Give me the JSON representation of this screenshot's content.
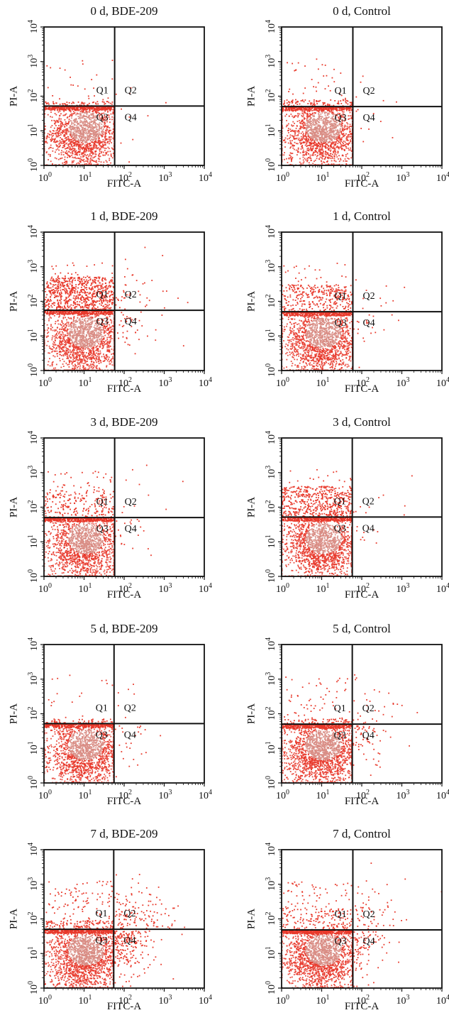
{
  "chart_data": [
    {
      "type": "scatter",
      "title": "0 d, BDE-209",
      "xlabel": "FITC-A",
      "ylabel": "PI-A",
      "xscale": "log",
      "yscale": "log",
      "xlim": [
        1,
        10000
      ],
      "ylim": [
        1,
        10000
      ],
      "x_ticks": [
        "10",
        "10",
        "10",
        "10",
        "10"
      ],
      "x_tick_exponents": [
        "0",
        "1",
        "2",
        "3",
        "4"
      ],
      "y_ticks": [
        "10",
        "10",
        "10",
        "10",
        "10"
      ],
      "y_tick_exponents": [
        "0",
        "1",
        "2",
        "3",
        "4"
      ],
      "gate_x": 58,
      "gate_y": 52,
      "quadrants": [
        "Q1",
        "Q2",
        "Q3",
        "Q4"
      ],
      "point_color": "#e8392b",
      "grid": false,
      "populations": {
        "q3_dense": 1700,
        "q1_band": 60,
        "q1_sparse": 25,
        "q2": 4,
        "q4": 6,
        "q1_band_top": 70
      }
    },
    {
      "type": "scatter",
      "title": "0 d, Control",
      "xlabel": "FITC-A",
      "ylabel": "PI-A",
      "xscale": "log",
      "yscale": "log",
      "xlim": [
        1,
        10000
      ],
      "ylim": [
        1,
        10000
      ],
      "x_ticks": [
        "10",
        "10",
        "10",
        "10",
        "10"
      ],
      "x_tick_exponents": [
        "0",
        "1",
        "2",
        "3",
        "4"
      ],
      "y_ticks": [
        "10",
        "10",
        "10",
        "10",
        "10"
      ],
      "y_tick_exponents": [
        "0",
        "1",
        "2",
        "3",
        "4"
      ],
      "gate_x": 60,
      "gate_y": 50,
      "quadrants": [
        "Q1",
        "Q2",
        "Q3",
        "Q4"
      ],
      "point_color": "#e8392b",
      "grid": false,
      "populations": {
        "q3_dense": 1700,
        "q1_band": 90,
        "q1_sparse": 40,
        "q2": 5,
        "q4": 8,
        "q1_band_top": 80
      }
    },
    {
      "type": "scatter",
      "title": "1 d, BDE-209",
      "xlabel": "FITC-A",
      "ylabel": "PI-A",
      "xscale": "log",
      "yscale": "log",
      "xlim": [
        1,
        10000
      ],
      "ylim": [
        1,
        10000
      ],
      "x_ticks": [
        "10",
        "10",
        "10",
        "10",
        "10"
      ],
      "x_tick_exponents": [
        "0",
        "1",
        "2",
        "3",
        "4"
      ],
      "y_ticks": [
        "10",
        "10",
        "10",
        "10",
        "10"
      ],
      "y_tick_exponents": [
        "0",
        "1",
        "2",
        "3",
        "4"
      ],
      "gate_x": 58,
      "gate_y": 55,
      "quadrants": [
        "Q1",
        "Q2",
        "Q3",
        "Q4"
      ],
      "point_color": "#e8392b",
      "grid": false,
      "populations": {
        "q3_dense": 1700,
        "q1_band": 700,
        "q1_sparse": 50,
        "q2": 40,
        "q4": 40,
        "q1_band_top": 500
      }
    },
    {
      "type": "scatter",
      "title": "1 d, Control",
      "xlabel": "FITC-A",
      "ylabel": "PI-A",
      "xscale": "log",
      "yscale": "log",
      "xlim": [
        1,
        10000
      ],
      "ylim": [
        1,
        10000
      ],
      "x_ticks": [
        "10",
        "10",
        "10",
        "10",
        "10"
      ],
      "x_tick_exponents": [
        "0",
        "1",
        "2",
        "3",
        "4"
      ],
      "y_ticks": [
        "10",
        "10",
        "10",
        "10",
        "10"
      ],
      "y_tick_exponents": [
        "0",
        "1",
        "2",
        "3",
        "4"
      ],
      "gate_x": 60,
      "gate_y": 50,
      "quadrants": [
        "Q1",
        "Q2",
        "Q3",
        "Q4"
      ],
      "point_color": "#e8392b",
      "grid": false,
      "populations": {
        "q3_dense": 1700,
        "q1_band": 300,
        "q1_sparse": 40,
        "q2": 10,
        "q4": 20,
        "q1_band_top": 300
      }
    },
    {
      "type": "scatter",
      "title": "3 d, BDE-209",
      "xlabel": "FITC-A",
      "ylabel": "PI-A",
      "xscale": "log",
      "yscale": "log",
      "xlim": [
        1,
        10000
      ],
      "ylim": [
        1,
        10000
      ],
      "x_ticks": [
        "10",
        "10",
        "10",
        "10",
        "10"
      ],
      "x_tick_exponents": [
        "0",
        "1",
        "2",
        "3",
        "4"
      ],
      "y_ticks": [
        "10",
        "10",
        "10",
        "10",
        "10"
      ],
      "y_tick_exponents": [
        "0",
        "1",
        "2",
        "3",
        "4"
      ],
      "gate_x": 58,
      "gate_y": 50,
      "quadrants": [
        "Q1",
        "Q2",
        "Q3",
        "Q4"
      ],
      "point_color": "#e8392b",
      "grid": false,
      "populations": {
        "q3_dense": 1700,
        "q1_band": 180,
        "q1_sparse": 60,
        "q2": 10,
        "q4": 20,
        "q1_band_top": 300
      }
    },
    {
      "type": "scatter",
      "title": "3 d, Control",
      "xlabel": "FITC-A",
      "ylabel": "PI-A",
      "xscale": "log",
      "yscale": "log",
      "xlim": [
        1,
        10000
      ],
      "ylim": [
        1,
        10000
      ],
      "x_ticks": [
        "10",
        "10",
        "10",
        "10",
        "10"
      ],
      "x_tick_exponents": [
        "0",
        "1",
        "2",
        "3",
        "4"
      ],
      "y_ticks": [
        "10",
        "10",
        "10",
        "10",
        "10"
      ],
      "y_tick_exponents": [
        "0",
        "1",
        "2",
        "3",
        "4"
      ],
      "gate_x": 58,
      "gate_y": 52,
      "quadrants": [
        "Q1",
        "Q2",
        "Q3",
        "Q4"
      ],
      "point_color": "#e8392b",
      "grid": false,
      "populations": {
        "q3_dense": 1700,
        "q1_band": 500,
        "q1_sparse": 40,
        "q2": 10,
        "q4": 10,
        "q1_band_top": 400
      }
    },
    {
      "type": "scatter",
      "title": "5 d, BDE-209",
      "xlabel": "FITC-A",
      "ylabel": "PI-A",
      "xscale": "log",
      "yscale": "log",
      "xlim": [
        1,
        10000
      ],
      "ylim": [
        1,
        10000
      ],
      "x_ticks": [
        "10",
        "10",
        "10",
        "10",
        "10"
      ],
      "x_tick_exponents": [
        "0",
        "1",
        "2",
        "3",
        "4"
      ],
      "y_ticks": [
        "10",
        "10",
        "10",
        "10",
        "10"
      ],
      "y_tick_exponents": [
        "0",
        "1",
        "2",
        "3",
        "4"
      ],
      "gate_x": 56,
      "gate_y": 52,
      "quadrants": [
        "Q1",
        "Q2",
        "Q3",
        "Q4"
      ],
      "point_color": "#e8392b",
      "grid": false,
      "populations": {
        "q3_dense": 1700,
        "q1_band": 50,
        "q1_sparse": 20,
        "q2": 6,
        "q4": 25,
        "q1_band_top": 70
      }
    },
    {
      "type": "scatter",
      "title": "5 d, Control",
      "xlabel": "FITC-A",
      "ylabel": "PI-A",
      "xscale": "log",
      "yscale": "log",
      "xlim": [
        1,
        10000
      ],
      "ylim": [
        1,
        10000
      ],
      "x_ticks": [
        "10",
        "10",
        "10",
        "10",
        "10"
      ],
      "x_tick_exponents": [
        "0",
        "1",
        "2",
        "3",
        "4"
      ],
      "y_ticks": [
        "10",
        "10",
        "10",
        "10",
        "10"
      ],
      "y_tick_exponents": [
        "0",
        "1",
        "2",
        "3",
        "4"
      ],
      "gate_x": 58,
      "gate_y": 50,
      "quadrants": [
        "Q1",
        "Q2",
        "Q3",
        "Q4"
      ],
      "point_color": "#e8392b",
      "grid": false,
      "populations": {
        "q3_dense": 1900,
        "q1_band": 60,
        "q1_sparse": 60,
        "q2": 30,
        "q4": 60,
        "q1_band_top": 70
      }
    },
    {
      "type": "scatter",
      "title": "7 d, BDE-209",
      "xlabel": "FITC-A",
      "ylabel": "PI-A",
      "xscale": "log",
      "yscale": "log",
      "xlim": [
        1,
        10000
      ],
      "ylim": [
        1,
        10000
      ],
      "x_ticks": [
        "10",
        "10",
        "10",
        "10",
        "10"
      ],
      "x_tick_exponents": [
        "0",
        "1",
        "2",
        "3",
        "4"
      ],
      "y_ticks": [
        "10",
        "10",
        "10",
        "10",
        "10"
      ],
      "y_tick_exponents": [
        "0",
        "1",
        "2",
        "3",
        "4"
      ],
      "gate_x": 55,
      "gate_y": 50,
      "quadrants": [
        "Q1",
        "Q2",
        "Q3",
        "Q4"
      ],
      "point_color": "#e8392b",
      "grid": false,
      "populations": {
        "q3_dense": 1900,
        "q1_band": 100,
        "q1_sparse": 120,
        "q2": 130,
        "q4": 200,
        "q1_band_top": 90
      }
    },
    {
      "type": "scatter",
      "title": "7 d, Control",
      "xlabel": "FITC-A",
      "ylabel": "PI-A",
      "xscale": "log",
      "yscale": "log",
      "xlim": [
        1,
        10000
      ],
      "ylim": [
        1,
        10000
      ],
      "x_ticks": [
        "10",
        "10",
        "10",
        "10",
        "10"
      ],
      "x_tick_exponents": [
        "0",
        "1",
        "2",
        "3",
        "4"
      ],
      "y_ticks": [
        "10",
        "10",
        "10",
        "10",
        "10"
      ],
      "y_tick_exponents": [
        "0",
        "1",
        "2",
        "3",
        "4"
      ],
      "gate_x": 60,
      "gate_y": 48,
      "quadrants": [
        "Q1",
        "Q2",
        "Q3",
        "Q4"
      ],
      "point_color": "#e8392b",
      "grid": false,
      "populations": {
        "q3_dense": 1900,
        "q1_band": 120,
        "q1_sparse": 100,
        "q2": 60,
        "q4": 90,
        "q1_band_top": 200
      }
    }
  ]
}
